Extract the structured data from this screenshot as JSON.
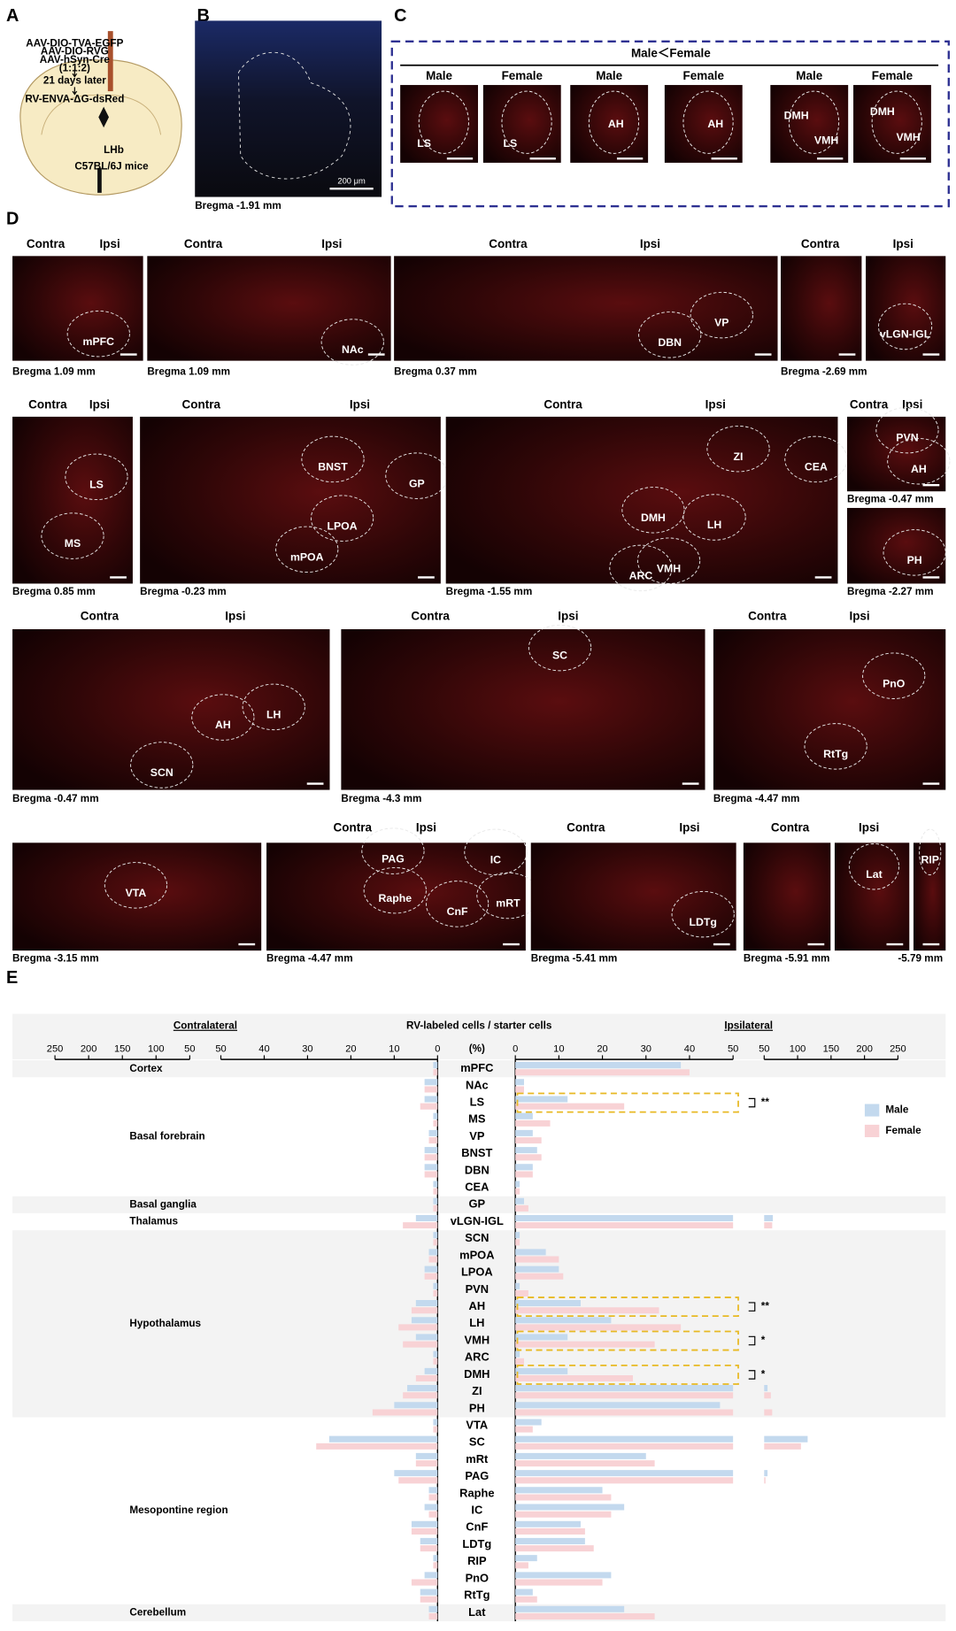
{
  "panel_a": {
    "label": "A",
    "lines": [
      "AAV-DIO-TVA-EGFP",
      "AAV-DIO-RVG",
      "AAV-hSyn-Cre",
      "(1:1:2)",
      "21 days later",
      "RV-ENVA-ΔG-dsRed"
    ],
    "target": "LHb",
    "mice": "C57BL/6J mice"
  },
  "panel_b": {
    "label": "B",
    "scale": "200 μm",
    "bregma": "Bregma -1.91 mm"
  },
  "panel_c": {
    "label": "C",
    "title": "Male＜Female",
    "images": [
      {
        "header": "Male",
        "regions": [
          "LS"
        ]
      },
      {
        "header": "Female",
        "regions": [
          "LS"
        ]
      },
      {
        "header": "Male",
        "regions": [
          "AH"
        ]
      },
      {
        "header": "Female",
        "regions": [
          "AH"
        ]
      },
      {
        "header": "Male",
        "regions": [
          "DMH",
          "VMH"
        ]
      },
      {
        "header": "Female",
        "regions": [
          "DMH",
          "VMH"
        ]
      }
    ]
  },
  "panel_d": {
    "label": "D",
    "images": [
      {
        "headers": [
          "Contra",
          "Ipsi"
        ],
        "regions": [
          "mPFC"
        ],
        "bregma": "Bregma 1.09 mm"
      },
      {
        "headers": [
          "Contra",
          "Ipsi"
        ],
        "regions": [
          "NAc"
        ],
        "bregma": "Bregma 1.09 mm"
      },
      {
        "headers": [
          "Contra",
          "Ipsi"
        ],
        "regions": [
          "VP",
          "DBN"
        ],
        "bregma": "Bregma 0.37 mm"
      },
      {
        "headers": [
          "Contra"
        ],
        "regions": [],
        "bregma": "Bregma -2.69 mm"
      },
      {
        "headers": [
          "Ipsi"
        ],
        "regions": [
          "vLGN-IGL"
        ]
      },
      {
        "headers": [
          "Contra",
          "Ipsi"
        ],
        "regions": [
          "LS",
          "MS"
        ],
        "bregma": "Bregma 0.85 mm"
      },
      {
        "headers": [
          "Contra",
          "Ipsi"
        ],
        "regions": [
          "BNST",
          "GP",
          "LPOA",
          "mPOA"
        ],
        "bregma": "Bregma -0.23 mm"
      },
      {
        "headers": [
          "Contra",
          "Ipsi"
        ],
        "regions": [
          "ZI",
          "CEA",
          "DMH",
          "LH",
          "ARC",
          "VMH"
        ],
        "bregma": "Bregma -1.55 mm"
      },
      {
        "headers": [
          "Contra",
          "Ipsi"
        ],
        "regions": [
          "PVN",
          "AH"
        ],
        "bregma": "Bregma -0.47 mm"
      },
      {
        "headers": [],
        "regions": [
          "PH"
        ],
        "bregma": "Bregma -2.27 mm"
      },
      {
        "headers": [
          "Contra",
          "Ipsi"
        ],
        "regions": [
          "AH",
          "LH",
          "SCN"
        ],
        "bregma": "Bregma -0.47 mm"
      },
      {
        "headers": [
          "Contra",
          "Ipsi"
        ],
        "regions": [
          "SC"
        ],
        "bregma": "Bregma -4.3 mm"
      },
      {
        "headers": [
          "Contra",
          "Ipsi"
        ],
        "regions": [
          "PnO",
          "RtTg"
        ],
        "bregma": "Bregma -4.47 mm"
      },
      {
        "headers": [],
        "regions": [
          "VTA"
        ],
        "bregma": "Bregma -3.15 mm"
      },
      {
        "headers": [
          "Contra",
          "Ipsi"
        ],
        "regions": [
          "PAG",
          "IC",
          "Raphe",
          "CnF",
          "mRT"
        ],
        "bregma": "Bregma -4.47 mm"
      },
      {
        "headers": [
          "Contra",
          "Ipsi"
        ],
        "regions": [
          "LDTg"
        ],
        "bregma": "Bregma -5.41 mm"
      },
      {
        "headers": [
          "Contra"
        ],
        "regions": [],
        "bregma": "Bregma -5.91 mm"
      },
      {
        "headers": [
          "Ipsi"
        ],
        "regions": [
          "Lat"
        ]
      },
      {
        "headers": [],
        "regions": [
          "RIP"
        ],
        "bregma": "-5.79 mm"
      }
    ]
  },
  "chart_data": {
    "type": "bar",
    "panel": "E",
    "title": "RV-labeled cells / starter cells",
    "unit": "(%)",
    "left_label": "Contralateral",
    "right_label": "Ipsilateral",
    "categories": [
      "mPFC",
      "NAc",
      "LS",
      "MS",
      "VP",
      "BNST",
      "DBN",
      "CEA",
      "GP",
      "vLGN-IGL",
      "SCN",
      "mPOA",
      "LPOA",
      "PVN",
      "AH",
      "LH",
      "VMH",
      "ARC",
      "DMH",
      "ZI",
      "PH",
      "VTA",
      "SC",
      "mRt",
      "PAG",
      "Raphe",
      "IC",
      "CnF",
      "LDTg",
      "RIP",
      "PnO",
      "RtTg",
      "Lat"
    ],
    "groups": [
      {
        "name": "Cortex",
        "span": [
          0,
          0
        ]
      },
      {
        "name": "Basal forebrain",
        "span": [
          1,
          7
        ]
      },
      {
        "name": "Basal ganglia",
        "span": [
          8,
          8
        ]
      },
      {
        "name": "Thalamus",
        "span": [
          9,
          9
        ]
      },
      {
        "name": "Hypothalamus",
        "span": [
          10,
          20
        ]
      },
      {
        "name": "Mesopontine region",
        "span": [
          21,
          31
        ]
      },
      {
        "name": "Cerebellum",
        "span": [
          32,
          32
        ]
      }
    ],
    "series": [
      {
        "name": "Male",
        "color": "#c3d9ee",
        "contralateral": [
          1,
          3,
          3,
          1,
          2,
          3,
          3,
          1,
          1,
          5,
          1,
          2,
          3,
          1,
          5,
          6,
          5,
          1,
          3,
          7,
          10,
          1,
          25,
          5,
          10,
          2,
          3,
          6,
          4,
          1,
          3,
          4,
          2
        ],
        "ipsilateral": [
          38,
          2,
          12,
          4,
          4,
          5,
          4,
          1,
          2,
          63,
          1,
          7,
          10,
          1,
          15,
          22,
          12,
          1,
          12,
          55,
          47,
          6,
          115,
          30,
          55,
          20,
          25,
          15,
          16,
          5,
          22,
          4,
          25
        ]
      },
      {
        "name": "Female",
        "color": "#f8d2d5",
        "contralateral": [
          1,
          3,
          4,
          1,
          2,
          3,
          3,
          1,
          1,
          8,
          1,
          2,
          3,
          1,
          6,
          9,
          8,
          1,
          5,
          8,
          15,
          1,
          28,
          5,
          9,
          2,
          2,
          6,
          4,
          1,
          6,
          4,
          2
        ],
        "ipsilateral": [
          40,
          2,
          25,
          8,
          6,
          6,
          4,
          1,
          3,
          62,
          1,
          10,
          11,
          3,
          33,
          38,
          32,
          2,
          27,
          60,
          62,
          4,
          105,
          32,
          52,
          22,
          22,
          16,
          18,
          3,
          20,
          5,
          32
        ]
      }
    ],
    "xlim_inner": [
      0,
      50
    ],
    "xlim_outer": [
      50,
      250
    ],
    "xticks_inner": [
      0,
      10,
      20,
      30,
      40,
      50
    ],
    "xticks_outer": [
      50,
      100,
      150,
      200,
      250
    ],
    "legend": "upper right",
    "significance": [
      {
        "category": 2,
        "label": "**"
      },
      {
        "category": 14,
        "label": "**"
      },
      {
        "category": 16,
        "label": "*"
      },
      {
        "category": 18,
        "label": "*"
      }
    ]
  }
}
